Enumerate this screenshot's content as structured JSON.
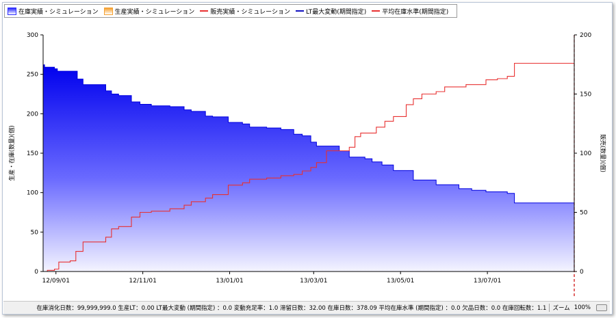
{
  "legend": [
    {
      "label": "在庫実績・シミュレーション",
      "kind": "area",
      "color": "#2b2bff"
    },
    {
      "label": "生産実績・シミュレーション",
      "kind": "area",
      "color": "#f5a030"
    },
    {
      "label": "販売実績・シミュレーション",
      "kind": "line",
      "color": "#e83030"
    },
    {
      "label": "LT最大変動(期間指定)",
      "kind": "line",
      "color": "#1010c0"
    },
    {
      "label": "平均在庫水準(期間指定)",
      "kind": "line",
      "color": "#e83030"
    }
  ],
  "chart_data": {
    "type": "area",
    "ylabel": "生産・在庫(数量)(個)",
    "y2label": "販売(数量)(個)",
    "ylim": [
      0,
      300
    ],
    "y2lim": [
      0,
      200
    ],
    "yticks": [
      0,
      50,
      100,
      150,
      200,
      250,
      300
    ],
    "y2ticks": [
      0,
      50,
      100,
      150,
      200
    ],
    "xlim": [
      "2012-08-23",
      "2013-08-31"
    ],
    "xticks": [
      {
        "date": "2012-09-01",
        "label": "12/09/01"
      },
      {
        "date": "2012-11-01",
        "label": "12/11/01"
      },
      {
        "date": "2013-01-01",
        "label": "13/01/01"
      },
      {
        "date": "2013-03-01",
        "label": "13/03/01"
      },
      {
        "date": "2013-05-01",
        "label": "13/05/01"
      },
      {
        "date": "2013-07-01",
        "label": "13/07/01"
      }
    ],
    "series": [
      {
        "name": "在庫実績・シミュレーション",
        "axis": "left",
        "color": "#1a1aff",
        "points": [
          [
            "2012-08-23",
            262
          ],
          [
            "2012-08-24",
            259
          ],
          [
            "2012-08-31",
            257
          ],
          [
            "2012-09-02",
            254
          ],
          [
            "2012-09-16",
            244
          ],
          [
            "2012-09-20",
            237
          ],
          [
            "2012-10-06",
            229
          ],
          [
            "2012-10-10",
            225
          ],
          [
            "2012-10-15",
            223
          ],
          [
            "2012-10-24",
            215
          ],
          [
            "2012-10-30",
            212
          ],
          [
            "2012-11-07",
            210
          ],
          [
            "2012-11-20",
            209
          ],
          [
            "2012-11-30",
            205
          ],
          [
            "2012-12-05",
            203
          ],
          [
            "2012-12-15",
            197
          ],
          [
            "2012-12-20",
            196
          ],
          [
            "2012-12-31",
            189
          ],
          [
            "2013-01-10",
            187
          ],
          [
            "2013-01-15",
            183
          ],
          [
            "2013-01-27",
            182
          ],
          [
            "2013-02-06",
            180
          ],
          [
            "2013-02-15",
            174
          ],
          [
            "2013-02-21",
            172
          ],
          [
            "2013-02-27",
            164
          ],
          [
            "2013-03-03",
            159
          ],
          [
            "2013-03-19",
            153
          ],
          [
            "2013-03-26",
            145
          ],
          [
            "2013-04-06",
            143
          ],
          [
            "2013-04-11",
            139
          ],
          [
            "2013-04-18",
            135
          ],
          [
            "2013-04-26",
            128
          ],
          [
            "2013-05-10",
            116
          ],
          [
            "2013-05-26",
            110
          ],
          [
            "2013-06-11",
            105
          ],
          [
            "2013-06-20",
            103
          ],
          [
            "2013-06-30",
            101
          ],
          [
            "2013-07-15",
            99
          ],
          [
            "2013-07-20",
            87
          ],
          [
            "2013-08-31",
            87
          ]
        ]
      },
      {
        "name": "販売実績・シミュレーション",
        "axis": "right",
        "color": "#e83030",
        "points": [
          [
            "2012-08-23",
            0
          ],
          [
            "2012-08-26",
            1
          ],
          [
            "2012-08-31",
            2
          ],
          [
            "2012-09-03",
            8
          ],
          [
            "2012-09-11",
            9
          ],
          [
            "2012-09-15",
            17
          ],
          [
            "2012-09-20",
            25
          ],
          [
            "2012-10-06",
            29
          ],
          [
            "2012-10-10",
            36
          ],
          [
            "2012-10-15",
            38
          ],
          [
            "2012-10-24",
            46
          ],
          [
            "2012-10-30",
            50
          ],
          [
            "2012-11-07",
            51
          ],
          [
            "2012-11-20",
            53
          ],
          [
            "2012-11-30",
            56
          ],
          [
            "2012-12-05",
            59
          ],
          [
            "2012-12-15",
            62
          ],
          [
            "2012-12-20",
            65
          ],
          [
            "2012-12-31",
            73
          ],
          [
            "2013-01-10",
            75
          ],
          [
            "2013-01-15",
            78
          ],
          [
            "2013-01-27",
            79
          ],
          [
            "2013-02-06",
            81
          ],
          [
            "2013-02-15",
            82
          ],
          [
            "2013-02-21",
            85
          ],
          [
            "2013-02-27",
            88
          ],
          [
            "2013-03-03",
            92
          ],
          [
            "2013-03-10",
            102
          ],
          [
            "2013-03-26",
            105
          ],
          [
            "2013-03-30",
            114
          ],
          [
            "2013-04-03",
            117
          ],
          [
            "2013-04-14",
            122
          ],
          [
            "2013-04-20",
            127
          ],
          [
            "2013-04-26",
            131
          ],
          [
            "2013-05-05",
            141
          ],
          [
            "2013-05-10",
            146
          ],
          [
            "2013-05-16",
            150
          ],
          [
            "2013-05-26",
            152
          ],
          [
            "2013-06-01",
            156
          ],
          [
            "2013-06-16",
            158
          ],
          [
            "2013-06-30",
            162
          ],
          [
            "2013-07-08",
            163
          ],
          [
            "2013-07-15",
            165
          ],
          [
            "2013-07-20",
            176
          ],
          [
            "2013-08-31",
            176
          ]
        ]
      }
    ],
    "vertical_marker": {
      "date": "2013-08-31",
      "color": "#cc0000",
      "style": "dashed"
    }
  },
  "status": {
    "text": "在庫消化日数：99,999,999.0 生産LT：0.00 LT最大変動 (期間指定) ：0.0 変動充足率：1.0 滞留日数：32.00 在庫日数：378.09 平均在庫水準 (期間指定) ：0.0 欠品日数：0.0 在庫回転数：1.1",
    "zoom_label": "ズーム",
    "zoom_value": "100%"
  }
}
